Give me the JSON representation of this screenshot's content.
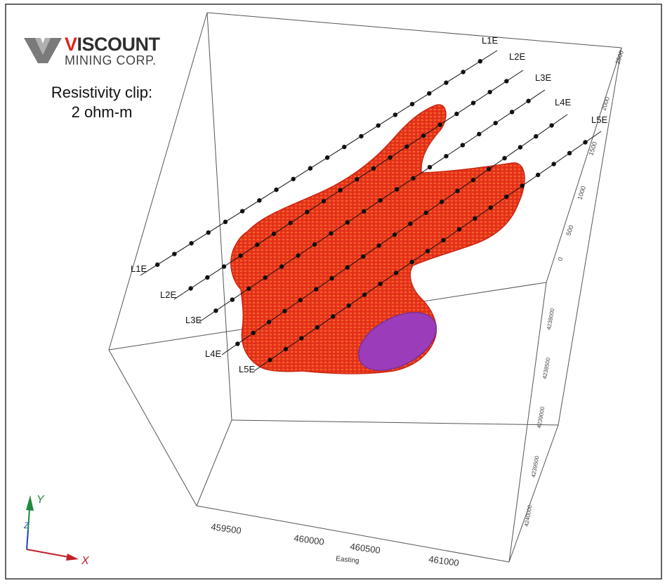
{
  "logo": {
    "accent_letter": "V",
    "word_rest": "ISCOUNT",
    "subtitle": "MINING CORP."
  },
  "annotation": {
    "line1": "Resistivity clip:",
    "line2": "2 ohm-m"
  },
  "survey_lines": [
    {
      "start_label": "L1E",
      "end_label": "L1E"
    },
    {
      "start_label": "L2E",
      "end_label": "L2E"
    },
    {
      "start_label": "L3E",
      "end_label": "L3E"
    },
    {
      "start_label": "L4E",
      "end_label": "L4E"
    },
    {
      "start_label": "L5E",
      "end_label": "L5E"
    }
  ],
  "easting_axis": {
    "title": "Easting",
    "ticks": [
      "459500",
      "460000",
      "460500",
      "461000"
    ]
  },
  "northing_axis": {
    "ticks": [
      "4238000",
      "4238500",
      "4239000",
      "4239500",
      "4240000"
    ]
  },
  "elevation_axis": {
    "ticks": [
      "2500",
      "2000",
      "1500",
      "1000",
      "500",
      "0"
    ]
  },
  "orientation_triad": {
    "x": "X",
    "y": "Y",
    "z": "Z"
  },
  "colors": {
    "body": "#e8341c",
    "body_highlight": "#f06a2a",
    "section": "#9b3dbb",
    "dot": "#111111",
    "x_axis": "#c0202a",
    "y_axis": "#1e8a3a",
    "z_axis": "#2a4cc0"
  }
}
